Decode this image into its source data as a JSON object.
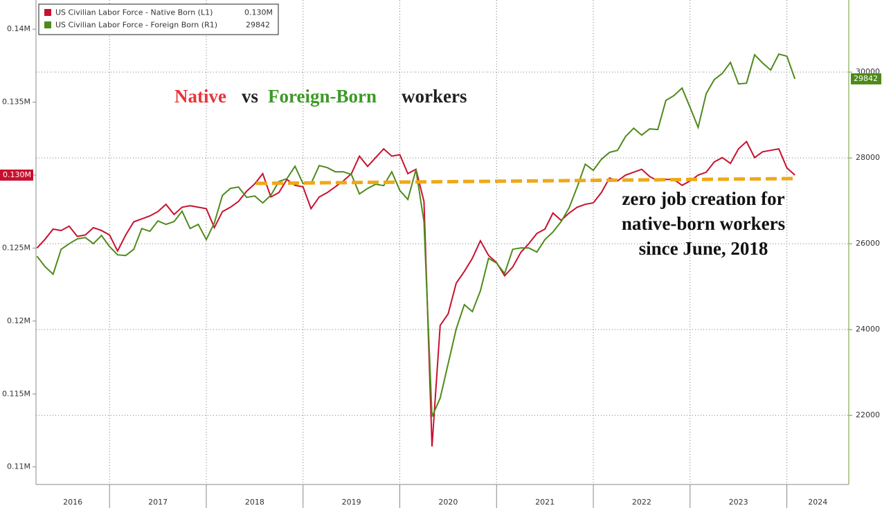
{
  "chart_data": {
    "type": "line",
    "annotations": {
      "title_parts": [
        "Native",
        "vs",
        "Foreign-Born",
        "workers"
      ],
      "note_lines": [
        "zero job creation for",
        "native-born workers",
        "since June, 2018"
      ]
    },
    "x": [
      2016.25,
      2016.333,
      2016.417,
      2016.5,
      2016.583,
      2016.667,
      2016.75,
      2016.833,
      2016.917,
      2017,
      2017.083,
      2017.167,
      2017.25,
      2017.333,
      2017.417,
      2017.5,
      2017.583,
      2017.667,
      2017.75,
      2017.833,
      2017.917,
      2018,
      2018.083,
      2018.167,
      2018.25,
      2018.333,
      2018.417,
      2018.5,
      2018.583,
      2018.667,
      2018.75,
      2018.833,
      2018.917,
      2019,
      2019.083,
      2019.167,
      2019.25,
      2019.333,
      2019.417,
      2019.5,
      2019.583,
      2019.667,
      2019.75,
      2019.833,
      2019.917,
      2020,
      2020.083,
      2020.167,
      2020.25,
      2020.333,
      2020.417,
      2020.5,
      2020.583,
      2020.667,
      2020.75,
      2020.833,
      2020.917,
      2021,
      2021.083,
      2021.167,
      2021.25,
      2021.333,
      2021.417,
      2021.5,
      2021.583,
      2021.667,
      2021.75,
      2021.833,
      2021.917,
      2022,
      2022.083,
      2022.167,
      2022.25,
      2022.333,
      2022.417,
      2022.5,
      2022.583,
      2022.667,
      2022.75,
      2022.833,
      2022.917,
      2023,
      2023.083,
      2023.167,
      2023.25,
      2023.333,
      2023.417,
      2023.5,
      2023.583,
      2023.667,
      2023.75,
      2023.833,
      2023.917,
      2024,
      2024.083
    ],
    "series": [
      {
        "name": "US Civilian Labor Force - Native Born (L1)",
        "last_label": "0.130M",
        "color": "#c8102e",
        "axis": "y",
        "values": [
          0.125,
          0.1256,
          0.1263,
          0.1262,
          0.1265,
          0.1258,
          0.1259,
          0.1264,
          0.1262,
          0.1259,
          0.1248,
          0.1259,
          0.1268,
          0.127,
          0.1272,
          0.1275,
          0.128,
          0.1273,
          0.1278,
          0.1279,
          0.1278,
          0.1277,
          0.1264,
          0.1275,
          0.1278,
          0.1282,
          0.1289,
          0.1294,
          0.1301,
          0.1285,
          0.1288,
          0.1297,
          0.1293,
          0.1292,
          0.1277,
          0.1285,
          0.1288,
          0.1292,
          0.1296,
          0.1301,
          0.1313,
          0.1306,
          0.1312,
          0.1318,
          0.1313,
          0.1314,
          0.1301,
          0.1304,
          0.1282,
          0.1114,
          0.1197,
          0.1205,
          0.1226,
          0.1234,
          0.1243,
          0.1255,
          0.1245,
          0.124,
          0.1231,
          0.1237,
          0.1247,
          0.1253,
          0.126,
          0.1263,
          0.1274,
          0.1269,
          0.1274,
          0.1278,
          0.128,
          0.1281,
          0.1288,
          0.1298,
          0.1296,
          0.13,
          0.1302,
          0.1304,
          0.1299,
          0.1296,
          0.1297,
          0.1297,
          0.1293,
          0.1296,
          0.13,
          0.1302,
          0.1309,
          0.1312,
          0.1308,
          0.1318,
          0.1323,
          0.1312,
          0.1316,
          0.1317,
          0.1318,
          0.1305,
          0.13
        ]
      },
      {
        "name": "US Civilian Labor Force - Foreign Born (R1)",
        "color": "#4e8a1a",
        "axis": "y2",
        "values": [
          25709,
          25467,
          25290,
          25871,
          26000,
          26113,
          26145,
          26000,
          26193,
          25935,
          25742,
          25726,
          25871,
          26355,
          26290,
          26532,
          26451,
          26516,
          26758,
          26355,
          26451,
          26097,
          26484,
          27129,
          27290,
          27322,
          27080,
          27113,
          26951,
          27129,
          27451,
          27516,
          27806,
          27403,
          27403,
          27822,
          27774,
          27677,
          27677,
          27613,
          27161,
          27290,
          27387,
          27355,
          27677,
          27242,
          27032,
          27726,
          26516,
          21967,
          22403,
          23209,
          24016,
          24580,
          24419,
          24903,
          25661,
          25548,
          25306,
          25871,
          25903,
          25903,
          25806,
          26097,
          26274,
          26516,
          26839,
          27322,
          27855,
          27710,
          27968,
          28129,
          28177,
          28500,
          28693,
          28532,
          28677,
          28661,
          29339,
          29452,
          29629,
          29177,
          28710,
          29500,
          29823,
          29968,
          30226,
          29726,
          29742,
          30403,
          30210,
          30048,
          30419,
          30371,
          29842
        ]
      }
    ],
    "xlim": [
      2016.24,
      2024.64
    ],
    "xticks": [
      {
        "value": 2016.62,
        "label": "2016"
      },
      {
        "value": 2017.5,
        "label": "2017"
      },
      {
        "value": 2018.5,
        "label": "2018"
      },
      {
        "value": 2019.5,
        "label": "2019"
      },
      {
        "value": 2020.5,
        "label": "2020"
      },
      {
        "value": 2021.5,
        "label": "2021"
      },
      {
        "value": 2022.5,
        "label": "2022"
      },
      {
        "value": 2023.5,
        "label": "2023"
      },
      {
        "value": 2024.32,
        "label": "2024"
      }
    ],
    "ylim": [
      0.1088,
      0.142
    ],
    "yticks": [
      {
        "value": 0.11,
        "label": "0.11M"
      },
      {
        "value": 0.115,
        "label": "0.115M"
      },
      {
        "value": 0.12,
        "label": "0.12M"
      },
      {
        "value": 0.125,
        "label": "0.125M"
      },
      {
        "value": 0.13,
        "label": "0.13M"
      },
      {
        "value": 0.135,
        "label": "0.135M"
      },
      {
        "value": 0.14,
        "label": "0.14M"
      }
    ],
    "y2lim": [
      20390,
      31680
    ],
    "y2ticks": [
      22000,
      24000,
      26000,
      28000,
      30000
    ],
    "grid": true
  }
}
